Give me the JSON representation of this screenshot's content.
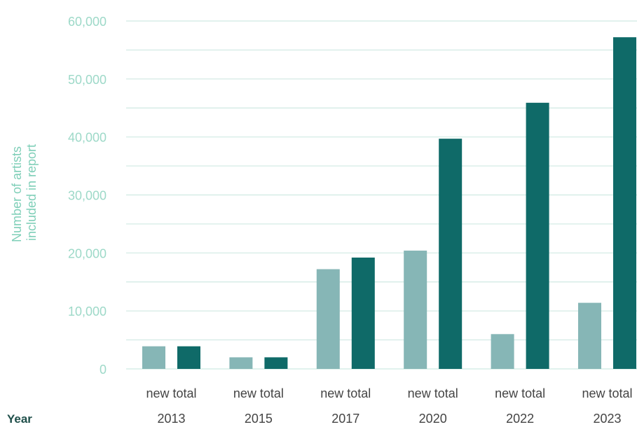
{
  "chart_data": {
    "type": "bar",
    "ylabel_lines": [
      "Number of artists",
      "included in report"
    ],
    "xlabel": "Year",
    "ylim": [
      0,
      60000
    ],
    "y_ticks": [
      "0",
      "10,000",
      "20,000",
      "30,000",
      "40,000",
      "50,000",
      "60,000"
    ],
    "grid": true,
    "categories": [
      "2013",
      "2015",
      "2017",
      "2020",
      "2022",
      "2023"
    ],
    "bar_labels": [
      "new",
      "total"
    ],
    "category_sublabels": [
      "new total",
      "new total",
      "new total",
      "new total",
      "new total",
      "new total"
    ],
    "series": [
      {
        "values": [
          3900,
          2000,
          17200,
          20400,
          6000,
          11400
        ],
        "color": "#86b6b6"
      },
      {
        "values": [
          3900,
          2000,
          19200,
          39700,
          45900,
          57200
        ],
        "color": "#0f6a68"
      }
    ]
  }
}
